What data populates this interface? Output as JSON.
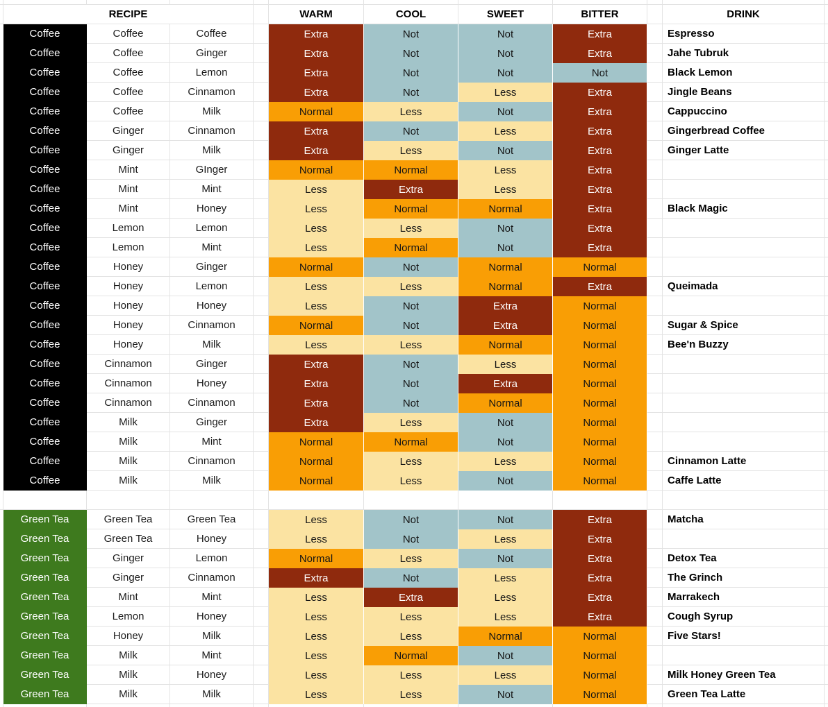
{
  "header": {
    "recipe": "RECIPE",
    "warm": "WARM",
    "cool": "COOL",
    "sweet": "SWEET",
    "bitter": "BITTER",
    "drink": "DRINK"
  },
  "legend_colors": {
    "extra": "#8F2A0D",
    "normal": "#F99E05",
    "less": "#FBE3A2",
    "not": "#A2C4C9",
    "coffee_black": "#000000",
    "green_tea_green": "#3E7A1E"
  },
  "sections": [
    {
      "base": "Coffee",
      "base_style": "coffee",
      "rows": [
        {
          "i1": "Coffee",
          "i2": "Coffee",
          "i3": "Coffee",
          "warm": "Extra",
          "cool": "Not",
          "sweet": "Not",
          "bitter": "Extra",
          "drink": "Espresso"
        },
        {
          "i1": "Coffee",
          "i2": "Coffee",
          "i3": "Ginger",
          "warm": "Extra",
          "cool": "Not",
          "sweet": "Not",
          "bitter": "Extra",
          "drink": "Jahe Tubruk"
        },
        {
          "i1": "Coffee",
          "i2": "Coffee",
          "i3": "Lemon",
          "warm": "Extra",
          "cool": "Not",
          "sweet": "Not",
          "bitter": "Not",
          "drink": "Black Lemon"
        },
        {
          "i1": "Coffee",
          "i2": "Coffee",
          "i3": "Cinnamon",
          "warm": "Extra",
          "cool": "Not",
          "sweet": "Less",
          "bitter": "Extra",
          "drink": "Jingle Beans"
        },
        {
          "i1": "Coffee",
          "i2": "Coffee",
          "i3": "Milk",
          "warm": "Normal",
          "cool": "Less",
          "sweet": "Not",
          "bitter": "Extra",
          "drink": "Cappuccino"
        },
        {
          "i1": "Coffee",
          "i2": "Ginger",
          "i3": "Cinnamon",
          "warm": "Extra",
          "cool": "Not",
          "sweet": "Less",
          "bitter": "Extra",
          "drink": "Gingerbread Coffee"
        },
        {
          "i1": "Coffee",
          "i2": "Ginger",
          "i3": "Milk",
          "warm": "Extra",
          "cool": "Less",
          "sweet": "Not",
          "bitter": "Extra",
          "drink": "Ginger Latte"
        },
        {
          "i1": "Coffee",
          "i2": "Mint",
          "i3": "GInger",
          "warm": "Normal",
          "cool": "Normal",
          "sweet": "Less",
          "bitter": "Extra",
          "drink": ""
        },
        {
          "i1": "Coffee",
          "i2": "Mint",
          "i3": "Mint",
          "warm": "Less",
          "cool": "Extra",
          "sweet": "Less",
          "bitter": "Extra",
          "drink": ""
        },
        {
          "i1": "Coffee",
          "i2": "Mint",
          "i3": "Honey",
          "warm": "Less",
          "cool": "Normal",
          "sweet": "Normal",
          "bitter": "Extra",
          "drink": "Black Magic"
        },
        {
          "i1": "Coffee",
          "i2": "Lemon",
          "i3": "Lemon",
          "warm": "Less",
          "cool": "Less",
          "sweet": "Not",
          "bitter": "Extra",
          "drink": ""
        },
        {
          "i1": "Coffee",
          "i2": "Lemon",
          "i3": "Mint",
          "warm": "Less",
          "cool": "Normal",
          "sweet": "Not",
          "bitter": "Extra",
          "drink": ""
        },
        {
          "i1": "Coffee",
          "i2": "Honey",
          "i3": "Ginger",
          "warm": "Normal",
          "cool": "Not",
          "sweet": "Normal",
          "bitter": "Normal",
          "drink": ""
        },
        {
          "i1": "Coffee",
          "i2": "Honey",
          "i3": "Lemon",
          "warm": "Less",
          "cool": "Less",
          "sweet": "Normal",
          "bitter": "Extra",
          "drink": "Queimada"
        },
        {
          "i1": "Coffee",
          "i2": "Honey",
          "i3": "Honey",
          "warm": "Less",
          "cool": "Not",
          "sweet": "Extra",
          "bitter": "Normal",
          "drink": ""
        },
        {
          "i1": "Coffee",
          "i2": "Honey",
          "i3": "Cinnamon",
          "warm": "Normal",
          "cool": "Not",
          "sweet": "Extra",
          "bitter": "Normal",
          "drink": "Sugar & Spice"
        },
        {
          "i1": "Coffee",
          "i2": "Honey",
          "i3": "Milk",
          "warm": "Less",
          "cool": "Less",
          "sweet": "Normal",
          "bitter": "Normal",
          "drink": "Bee'n Buzzy"
        },
        {
          "i1": "Coffee",
          "i2": "Cinnamon",
          "i3": "Ginger",
          "warm": "Extra",
          "cool": "Not",
          "sweet": "Less",
          "bitter": "Normal",
          "drink": ""
        },
        {
          "i1": "Coffee",
          "i2": "Cinnamon",
          "i3": "Honey",
          "warm": "Extra",
          "cool": "Not",
          "sweet": "Extra",
          "bitter": "Normal",
          "drink": ""
        },
        {
          "i1": "Coffee",
          "i2": "Cinnamon",
          "i3": "Cinnamon",
          "warm": "Extra",
          "cool": "Not",
          "sweet": "Normal",
          "bitter": "Normal",
          "drink": ""
        },
        {
          "i1": "Coffee",
          "i2": "Milk",
          "i3": "Ginger",
          "warm": "Extra",
          "cool": "Less",
          "sweet": "Not",
          "bitter": "Normal",
          "drink": ""
        },
        {
          "i1": "Coffee",
          "i2": "Milk",
          "i3": "Mint",
          "warm": "Normal",
          "cool": "Normal",
          "sweet": "Not",
          "bitter": "Normal",
          "drink": ""
        },
        {
          "i1": "Coffee",
          "i2": "Milk",
          "i3": "Cinnamon",
          "warm": "Normal",
          "cool": "Less",
          "sweet": "Less",
          "bitter": "Normal",
          "drink": "Cinnamon Latte"
        },
        {
          "i1": "Coffee",
          "i2": "Milk",
          "i3": "Milk",
          "warm": "Normal",
          "cool": "Less",
          "sweet": "Not",
          "bitter": "Normal",
          "drink": "Caffe Latte"
        }
      ]
    },
    {
      "base": "Green Tea",
      "base_style": "green",
      "rows": [
        {
          "i1": "Green Tea",
          "i2": "Green Tea",
          "i3": "Green Tea",
          "warm": "Less",
          "cool": "Not",
          "sweet": "Not",
          "bitter": "Extra",
          "drink": "Matcha"
        },
        {
          "i1": "Green Tea",
          "i2": "Green Tea",
          "i3": "Honey",
          "warm": "Less",
          "cool": "Not",
          "sweet": "Less",
          "bitter": "Extra",
          "drink": ""
        },
        {
          "i1": "Green Tea",
          "i2": "Ginger",
          "i3": "Lemon",
          "warm": "Normal",
          "cool": "Less",
          "sweet": "Not",
          "bitter": "Extra",
          "drink": "Detox Tea"
        },
        {
          "i1": "Green Tea",
          "i2": "Ginger",
          "i3": "Cinnamon",
          "warm": "Extra",
          "cool": "Not",
          "sweet": "Less",
          "bitter": "Extra",
          "drink": "The Grinch"
        },
        {
          "i1": "Green Tea",
          "i2": "Mint",
          "i3": "Mint",
          "warm": "Less",
          "cool": "Extra",
          "sweet": "Less",
          "bitter": "Extra",
          "drink": "Marrakech"
        },
        {
          "i1": "Green Tea",
          "i2": "Lemon",
          "i3": "Honey",
          "warm": "Less",
          "cool": "Less",
          "sweet": "Less",
          "bitter": "Extra",
          "drink": "Cough Syrup"
        },
        {
          "i1": "Green Tea",
          "i2": "Honey",
          "i3": "Milk",
          "warm": "Less",
          "cool": "Less",
          "sweet": "Normal",
          "bitter": "Normal",
          "drink": "Five Stars!"
        },
        {
          "i1": "Green Tea",
          "i2": "Milk",
          "i3": "Mint",
          "warm": "Less",
          "cool": "Normal",
          "sweet": "Not",
          "bitter": "Normal",
          "drink": ""
        },
        {
          "i1": "Green Tea",
          "i2": "Milk",
          "i3": "Honey",
          "warm": "Less",
          "cool": "Less",
          "sweet": "Less",
          "bitter": "Normal",
          "drink": "Milk Honey Green Tea"
        },
        {
          "i1": "Green Tea",
          "i2": "Milk",
          "i3": "Milk",
          "warm": "Less",
          "cool": "Less",
          "sweet": "Not",
          "bitter": "Normal",
          "drink": "Green Tea Latte"
        }
      ]
    }
  ]
}
